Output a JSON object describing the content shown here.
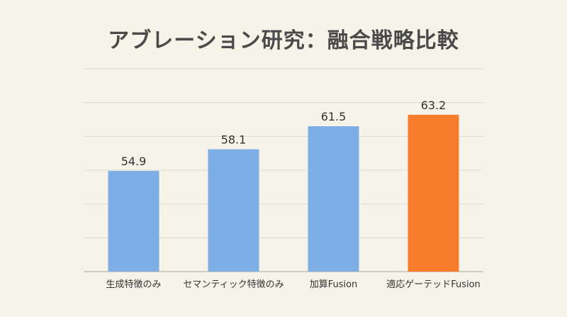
{
  "chart_data": {
    "type": "bar",
    "title": "アブレーション研究：融合戦略比較",
    "xlabel": "",
    "ylabel": "",
    "categories": [
      "生成特徴のみ",
      "セマンティック特徴のみ",
      "加算Fusion",
      "適応ゲーテッドFusion"
    ],
    "values": [
      54.9,
      58.1,
      61.5,
      63.2
    ],
    "value_labels": [
      "54.9",
      "58.1",
      "61.5",
      "63.2"
    ],
    "ylim": [
      40,
      70
    ],
    "grid": true,
    "legend": "none",
    "colors": {
      "default_bar": "#7eaee6",
      "highlight_bar": "#f97c2a",
      "grid": "#dcd9cf",
      "axis": "#b9b6ad",
      "text": "#333333"
    },
    "highlight_index": 3
  }
}
